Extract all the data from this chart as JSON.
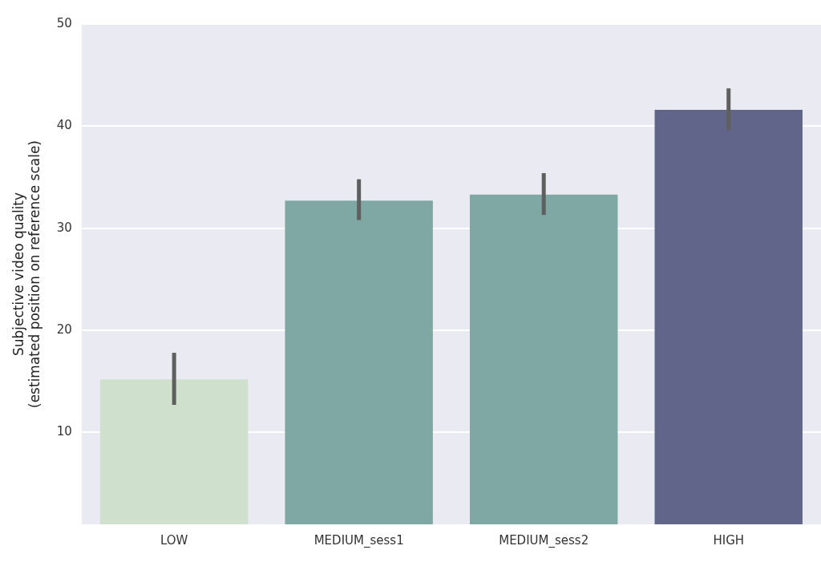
{
  "chart_data": {
    "type": "bar",
    "ylabel": "Subjective video quality\n(estimated position on reference scale)",
    "categories": [
      "LOW",
      "MEDIUM_sess1",
      "MEDIUM_sess2",
      "HIGH"
    ],
    "values": [
      15.2,
      32.7,
      33.3,
      41.6
    ],
    "colors": [
      "#cfe0cc",
      "#7fa8a5",
      "#7fa8a5",
      "#616589"
    ],
    "errors": [
      [
        12.7,
        17.8
      ],
      [
        30.8,
        34.8
      ],
      [
        31.3,
        35.4
      ],
      [
        39.6,
        43.7
      ]
    ],
    "ylim": [
      1,
      50
    ],
    "yticks": [
      10,
      20,
      30,
      40,
      50
    ],
    "grid": "y",
    "legend": false
  }
}
